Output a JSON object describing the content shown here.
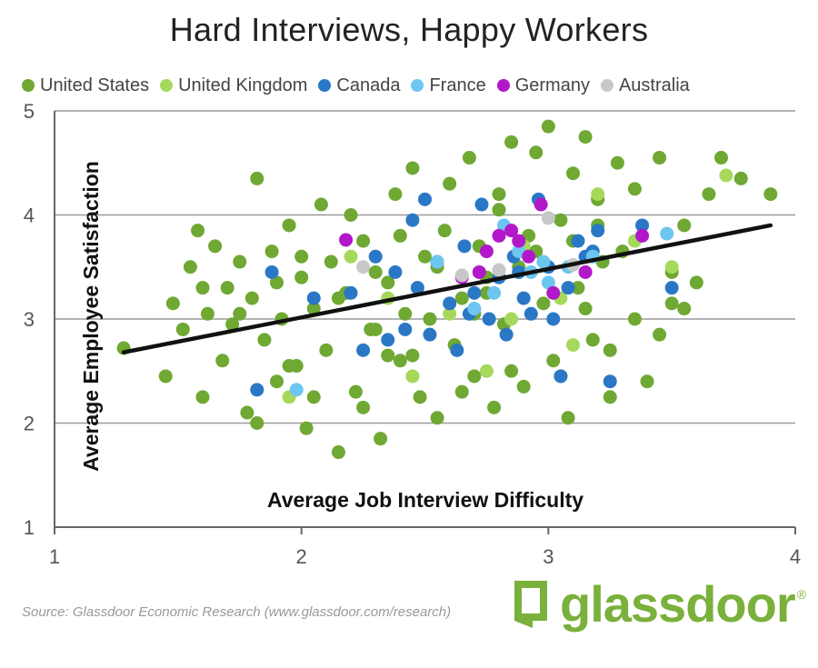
{
  "title": "Hard Interviews, Happy Workers",
  "legend": [
    {
      "label": "United States",
      "color": "#6fa832"
    },
    {
      "label": "United Kingdom",
      "color": "#a6d95b"
    },
    {
      "label": "Canada",
      "color": "#2a78c5"
    },
    {
      "label": "France",
      "color": "#6cc6ef"
    },
    {
      "label": "Germany",
      "color": "#b218c9"
    },
    {
      "label": "Australia",
      "color": "#c8c8c8"
    }
  ],
  "source": "Source: Glassdoor Economic Research (www.glassdoor.com/research)",
  "logo": {
    "text": "glassdoor",
    "reg": "®"
  },
  "chart_data": {
    "type": "scatter",
    "title": "Hard Interviews, Happy Workers",
    "xlabel": "Average Job Interview Difficulty",
    "ylabel": "Average Employee Satisfaction",
    "xlim": [
      1,
      4
    ],
    "ylim": [
      1,
      5
    ],
    "xticks": [
      1,
      2,
      3,
      4
    ],
    "yticks": [
      1,
      2,
      3,
      4,
      5
    ],
    "grid": "horizontal",
    "legend_position": "top",
    "trendline": {
      "x": [
        1.28,
        3.9
      ],
      "y": [
        2.68,
        3.9
      ]
    },
    "series": [
      {
        "name": "United States",
        "color": "#6fa832",
        "x": [
          1.28,
          1.45,
          1.48,
          1.52,
          1.55,
          1.58,
          1.6,
          1.62,
          1.65,
          1.68,
          1.7,
          1.72,
          1.75,
          1.78,
          1.8,
          1.82,
          1.85,
          1.88,
          1.9,
          1.92,
          1.95,
          1.98,
          2.0,
          2.02,
          2.05,
          2.08,
          2.1,
          2.12,
          2.15,
          2.18,
          2.2,
          2.22,
          2.25,
          2.28,
          2.3,
          2.32,
          2.35,
          2.38,
          2.4,
          2.42,
          2.45,
          2.48,
          2.5,
          2.52,
          2.55,
          2.58,
          2.6,
          2.62,
          2.65,
          2.68,
          2.7,
          2.72,
          2.75,
          2.78,
          2.8,
          2.82,
          2.85,
          2.88,
          2.9,
          2.92,
          2.95,
          2.98,
          3.0,
          3.02,
          3.05,
          3.08,
          3.1,
          3.12,
          3.15,
          3.18,
          3.2,
          3.22,
          3.25,
          3.28,
          3.3,
          3.35,
          3.4,
          3.45,
          3.5,
          3.55,
          3.6,
          3.65,
          3.7,
          3.78,
          3.9,
          1.82,
          1.95,
          2.05,
          2.25,
          2.45,
          2.65,
          2.85,
          3.05,
          3.25,
          3.45,
          2.0,
          2.4,
          2.8,
          3.2,
          1.75,
          2.15,
          2.55,
          2.95,
          3.35,
          1.9,
          2.3,
          2.7,
          3.1,
          3.5,
          1.6,
          2.35,
          2.75,
          3.15,
          3.55
        ],
        "y": [
          2.72,
          2.45,
          3.15,
          2.9,
          3.5,
          3.85,
          2.25,
          3.05,
          3.7,
          2.6,
          3.3,
          2.95,
          3.55,
          2.1,
          3.2,
          4.35,
          2.8,
          3.65,
          2.4,
          3.0,
          3.9,
          2.55,
          3.4,
          1.95,
          3.1,
          4.1,
          2.7,
          3.55,
          1.72,
          3.25,
          4.0,
          2.3,
          3.75,
          2.9,
          3.45,
          1.85,
          3.35,
          4.2,
          2.6,
          3.05,
          4.45,
          2.25,
          3.6,
          3.0,
          2.05,
          3.85,
          4.3,
          2.75,
          3.2,
          4.55,
          2.45,
          3.7,
          3.4,
          2.15,
          4.05,
          2.95,
          4.7,
          3.5,
          2.35,
          3.8,
          4.6,
          3.15,
          4.85,
          2.6,
          3.95,
          2.05,
          4.4,
          3.3,
          4.75,
          2.8,
          4.15,
          3.55,
          2.25,
          4.5,
          3.65,
          4.25,
          2.4,
          4.55,
          3.45,
          3.9,
          3.35,
          4.2,
          4.55,
          4.35,
          4.2,
          2.0,
          2.55,
          2.25,
          2.15,
          2.65,
          2.3,
          2.5,
          2.45,
          2.7,
          2.85,
          3.6,
          3.8,
          4.2,
          3.9,
          3.05,
          3.2,
          3.5,
          3.65,
          3.0,
          3.35,
          2.9,
          3.05,
          3.75,
          3.15,
          3.3,
          2.65,
          3.25,
          3.1,
          3.1
        ]
      },
      {
        "name": "United Kingdom",
        "color": "#a6d95b",
        "x": [
          1.95,
          2.2,
          2.45,
          2.6,
          2.75,
          2.9,
          3.05,
          3.2,
          3.35,
          3.5,
          3.72,
          2.35,
          2.85,
          3.1
        ],
        "y": [
          2.25,
          3.6,
          2.45,
          3.05,
          2.5,
          3.7,
          3.2,
          4.2,
          3.75,
          3.5,
          4.38,
          3.2,
          3.0,
          2.75
        ]
      },
      {
        "name": "Canada",
        "color": "#2a78c5",
        "x": [
          1.82,
          1.88,
          2.05,
          2.2,
          2.25,
          2.3,
          2.35,
          2.38,
          2.42,
          2.47,
          2.5,
          2.52,
          2.55,
          2.6,
          2.63,
          2.66,
          2.7,
          2.73,
          2.76,
          2.8,
          2.83,
          2.86,
          2.9,
          2.93,
          2.96,
          3.0,
          3.05,
          3.08,
          3.12,
          3.15,
          3.2,
          3.25,
          3.38,
          3.5,
          2.45,
          2.68,
          2.88,
          3.02,
          3.18
        ],
        "y": [
          2.32,
          3.45,
          3.2,
          3.25,
          2.7,
          3.6,
          2.8,
          3.45,
          2.9,
          3.3,
          4.15,
          2.85,
          3.55,
          3.15,
          2.7,
          3.7,
          3.25,
          4.1,
          3.0,
          3.4,
          2.85,
          3.6,
          3.2,
          3.05,
          4.15,
          3.5,
          2.45,
          3.3,
          3.75,
          3.6,
          3.85,
          2.4,
          3.9,
          3.3,
          3.95,
          3.05,
          3.45,
          3.0,
          3.65
        ]
      },
      {
        "name": "France",
        "color": "#6cc6ef",
        "x": [
          1.98,
          2.55,
          2.78,
          2.82,
          2.88,
          2.93,
          2.98,
          3.08,
          3.18,
          3.48,
          2.7,
          3.0
        ],
        "y": [
          2.32,
          3.55,
          3.25,
          3.9,
          3.65,
          3.45,
          3.55,
          3.5,
          3.6,
          3.82,
          3.1,
          3.35
        ]
      },
      {
        "name": "Germany",
        "color": "#b218c9",
        "x": [
          2.18,
          2.65,
          2.72,
          2.8,
          2.85,
          2.88,
          2.92,
          2.97,
          3.02,
          3.15,
          3.38,
          2.75
        ],
        "y": [
          3.76,
          3.4,
          3.45,
          3.8,
          3.85,
          3.75,
          3.6,
          4.1,
          3.25,
          3.45,
          3.8,
          3.65
        ]
      },
      {
        "name": "Australia",
        "color": "#c8c8c8",
        "x": [
          2.25,
          2.65,
          2.8,
          3.0,
          3.1
        ],
        "y": [
          3.5,
          3.42,
          3.47,
          3.97,
          3.52
        ]
      }
    ]
  }
}
